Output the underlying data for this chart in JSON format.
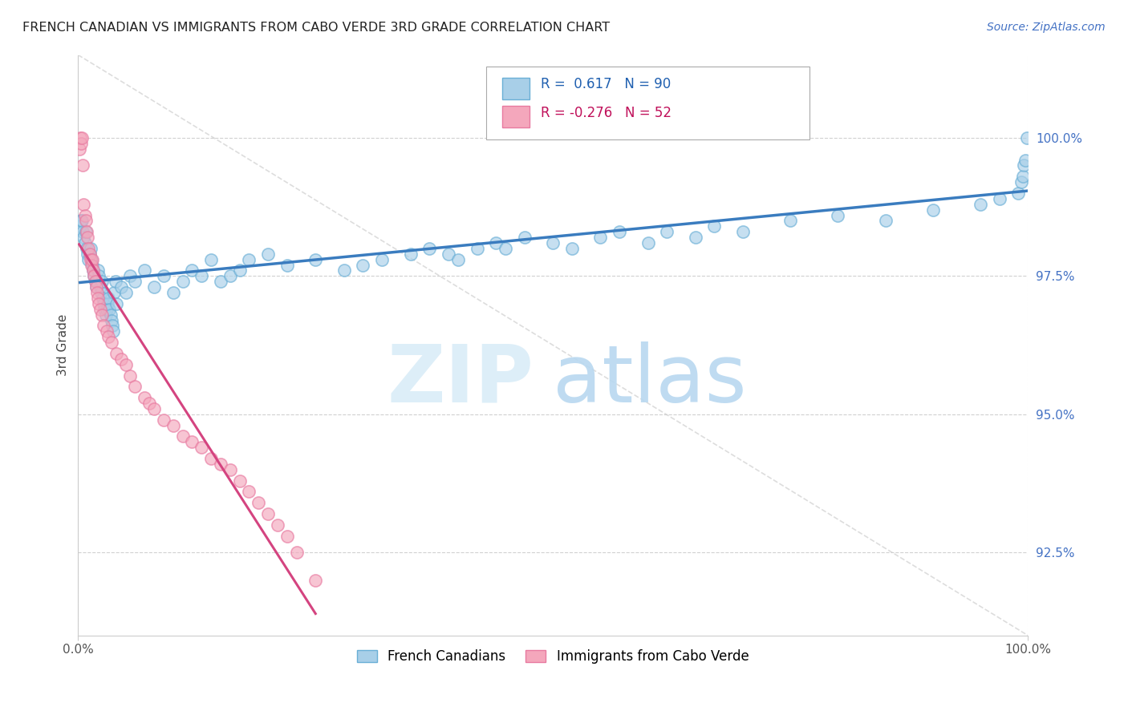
{
  "title": "FRENCH CANADIAN VS IMMIGRANTS FROM CABO VERDE 3RD GRADE CORRELATION CHART",
  "source": "Source: ZipAtlas.com",
  "ylabel": "3rd Grade",
  "xlim": [
    0.0,
    100.0
  ],
  "ylim": [
    91.0,
    101.5
  ],
  "yticks": [
    92.5,
    95.0,
    97.5,
    100.0
  ],
  "ytick_labels": [
    "92.5%",
    "95.0%",
    "97.5%",
    "100.0%"
  ],
  "blue_color": "#a8cfe8",
  "blue_edge_color": "#6aafd6",
  "pink_color": "#f4a7bc",
  "pink_edge_color": "#e87aa0",
  "blue_line_color": "#3a7cbf",
  "pink_line_color": "#d44480",
  "grid_color": "#cccccc",
  "diag_color": "#dddddd",
  "legend_R_blue": "0.617",
  "legend_N_blue": "90",
  "legend_R_pink": "-0.276",
  "legend_N_pink": "52",
  "blue_x": [
    0.2,
    0.3,
    0.4,
    0.5,
    0.6,
    0.7,
    0.8,
    0.9,
    1.0,
    1.1,
    1.2,
    1.3,
    1.4,
    1.5,
    1.6,
    1.7,
    1.8,
    1.9,
    2.0,
    2.1,
    2.2,
    2.3,
    2.4,
    2.5,
    2.6,
    2.7,
    2.8,
    2.9,
    3.0,
    3.1,
    3.2,
    3.3,
    3.4,
    3.5,
    3.6,
    3.7,
    3.8,
    3.9,
    4.0,
    4.5,
    5.0,
    5.5,
    6.0,
    7.0,
    8.0,
    9.0,
    10.0,
    11.0,
    12.0,
    13.0,
    14.0,
    15.0,
    16.0,
    17.0,
    18.0,
    20.0,
    22.0,
    25.0,
    28.0,
    30.0,
    32.0,
    35.0,
    37.0,
    39.0,
    40.0,
    42.0,
    44.0,
    45.0,
    47.0,
    50.0,
    52.0,
    55.0,
    57.0,
    60.0,
    62.0,
    65.0,
    67.0,
    70.0,
    75.0,
    80.0,
    85.0,
    90.0,
    95.0,
    97.0,
    99.0,
    99.3,
    99.5,
    99.6,
    99.7,
    99.9
  ],
  "blue_y": [
    98.4,
    98.5,
    98.5,
    98.3,
    98.2,
    98.1,
    98.3,
    98.0,
    97.9,
    97.8,
    97.9,
    98.0,
    97.8,
    97.7,
    97.6,
    97.5,
    97.4,
    97.3,
    97.4,
    97.6,
    97.5,
    97.3,
    97.2,
    97.4,
    97.1,
    97.0,
    96.9,
    96.8,
    96.9,
    97.0,
    97.1,
    96.9,
    96.8,
    96.7,
    96.6,
    96.5,
    97.2,
    97.4,
    97.0,
    97.3,
    97.2,
    97.5,
    97.4,
    97.6,
    97.3,
    97.5,
    97.2,
    97.4,
    97.6,
    97.5,
    97.8,
    97.4,
    97.5,
    97.6,
    97.8,
    97.9,
    97.7,
    97.8,
    97.6,
    97.7,
    97.8,
    97.9,
    98.0,
    97.9,
    97.8,
    98.0,
    98.1,
    98.0,
    98.2,
    98.1,
    98.0,
    98.2,
    98.3,
    98.1,
    98.3,
    98.2,
    98.4,
    98.3,
    98.5,
    98.6,
    98.5,
    98.7,
    98.8,
    98.9,
    99.0,
    99.2,
    99.3,
    99.5,
    99.6,
    100.0
  ],
  "pink_x": [
    0.1,
    0.2,
    0.3,
    0.4,
    0.5,
    0.6,
    0.7,
    0.8,
    0.9,
    1.0,
    1.1,
    1.2,
    1.3,
    1.4,
    1.5,
    1.6,
    1.7,
    1.8,
    1.9,
    2.0,
    2.1,
    2.2,
    2.3,
    2.5,
    2.7,
    3.0,
    3.2,
    3.5,
    4.0,
    4.5,
    5.0,
    5.5,
    6.0,
    7.0,
    7.5,
    8.0,
    9.0,
    10.0,
    11.0,
    12.0,
    13.0,
    14.0,
    15.0,
    16.0,
    17.0,
    18.0,
    19.0,
    20.0,
    21.0,
    22.0,
    23.0,
    25.0
  ],
  "pink_y": [
    99.8,
    100.0,
    99.9,
    100.0,
    99.5,
    98.8,
    98.6,
    98.5,
    98.3,
    98.2,
    98.0,
    97.9,
    97.8,
    97.7,
    97.8,
    97.6,
    97.5,
    97.4,
    97.3,
    97.2,
    97.1,
    97.0,
    96.9,
    96.8,
    96.6,
    96.5,
    96.4,
    96.3,
    96.1,
    96.0,
    95.9,
    95.7,
    95.5,
    95.3,
    95.2,
    95.1,
    94.9,
    94.8,
    94.6,
    94.5,
    94.4,
    94.2,
    94.1,
    94.0,
    93.8,
    93.6,
    93.4,
    93.2,
    93.0,
    92.8,
    92.5,
    92.0
  ]
}
